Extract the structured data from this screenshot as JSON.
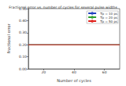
{
  "chart_data": {
    "type": "line",
    "title": "Fractional error vs. number of cycles for several pulse widths",
    "x_label": "Number of cycles",
    "y_label": "Fractional error",
    "x": [
      10,
      70
    ],
    "series": [
      {
        "name": "Tp = 10 ps",
        "color": "#1f3fbf",
        "values": [
          0.2,
          0.2
        ]
      },
      {
        "name": "Tp = 20 ps",
        "color": "#2ca02c",
        "values": [
          0.2,
          0.2
        ]
      },
      {
        "name": "Tp = 50 ps",
        "color": "#e0201b",
        "values": [
          0.2,
          0.2
        ]
      }
    ],
    "xlim": [
      10,
      70
    ],
    "xticks": [
      20,
      40,
      60
    ],
    "ylim": [
      0,
      0.5
    ],
    "yticks": [
      {
        "value": 0,
        "label": "0.00"
      },
      {
        "value": 0.1,
        "label": "0.10"
      },
      {
        "value": 0.2,
        "label": "0.20"
      },
      {
        "value": 0.3,
        "label": "0.30"
      },
      {
        "value": 0.4,
        "label": "0.40"
      },
      {
        "value": 0.5,
        "label": "0.50"
      }
    ],
    "grid": false,
    "legend": "upper right"
  }
}
